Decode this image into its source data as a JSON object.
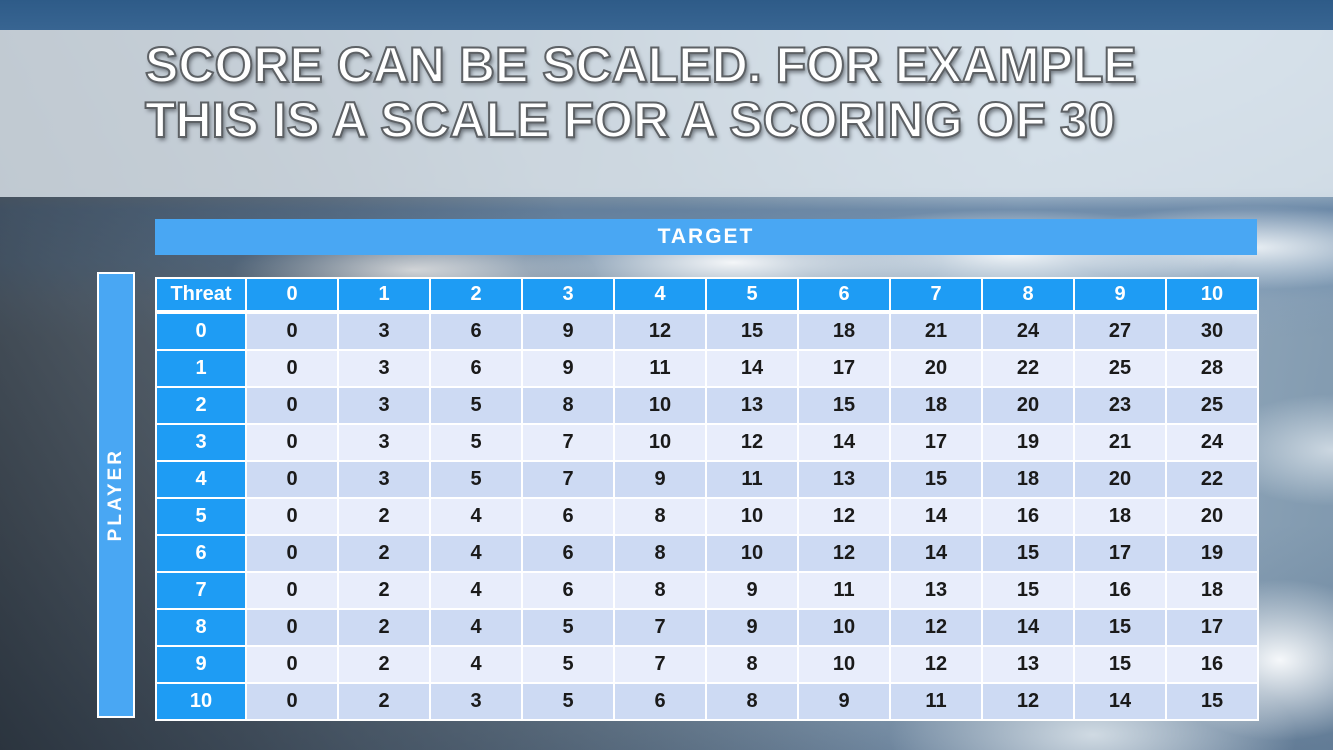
{
  "slide": {
    "title_line1": "SCORE CAN BE SCALED. FOR EXAMPLE",
    "title_line2": "THIS IS A SCALE FOR A SCORING OF 30"
  },
  "table": {
    "target_label": "TARGET",
    "player_label": "PLAYER",
    "corner_label": "Threat",
    "col_headers": [
      "0",
      "1",
      "2",
      "3",
      "4",
      "5",
      "6",
      "7",
      "8",
      "9",
      "10"
    ],
    "row_headers": [
      "0",
      "1",
      "2",
      "3",
      "4",
      "5",
      "6",
      "7",
      "8",
      "9",
      "10"
    ],
    "rows": [
      [
        0,
        3,
        6,
        9,
        12,
        15,
        18,
        21,
        24,
        27,
        30
      ],
      [
        0,
        3,
        6,
        9,
        11,
        14,
        17,
        20,
        22,
        25,
        28
      ],
      [
        0,
        3,
        5,
        8,
        10,
        13,
        15,
        18,
        20,
        23,
        25
      ],
      [
        0,
        3,
        5,
        7,
        10,
        12,
        14,
        17,
        19,
        21,
        24
      ],
      [
        0,
        3,
        5,
        7,
        9,
        11,
        13,
        15,
        18,
        20,
        22
      ],
      [
        0,
        2,
        4,
        6,
        8,
        10,
        12,
        14,
        16,
        18,
        20
      ],
      [
        0,
        2,
        4,
        6,
        8,
        10,
        12,
        14,
        15,
        17,
        19
      ],
      [
        0,
        2,
        4,
        6,
        8,
        9,
        11,
        13,
        15,
        16,
        18
      ],
      [
        0,
        2,
        4,
        5,
        7,
        9,
        10,
        12,
        14,
        15,
        17
      ],
      [
        0,
        2,
        4,
        5,
        7,
        8,
        10,
        12,
        13,
        15,
        16
      ],
      [
        0,
        2,
        3,
        5,
        6,
        8,
        9,
        11,
        12,
        14,
        15
      ]
    ]
  },
  "colors": {
    "top_bar": "#2E5B88",
    "header_blue": "#1E9CF4",
    "bar_blue": "#49A7F3",
    "band_dark": "#CDDAF3",
    "band_light": "#E8EDFB",
    "cell_text": "#1A1A1A"
  }
}
